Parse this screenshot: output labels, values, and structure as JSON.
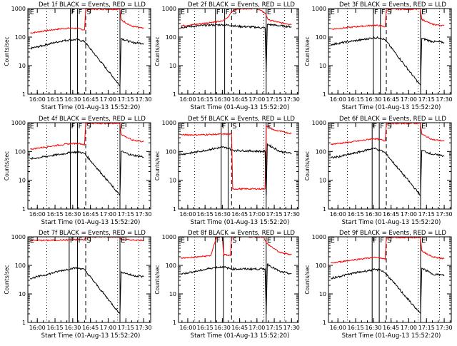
{
  "chart_data": {
    "type": "line",
    "layout": "3x3 grid of panels",
    "yscale": "log",
    "ylim": [
      1,
      1000
    ],
    "ytick_labels": [
      "1",
      "10",
      "100",
      "1000"
    ],
    "xtick_labels": [
      "16:00",
      "16:15",
      "16:30",
      "16:45",
      "17:00",
      "17:15",
      "17:30"
    ],
    "xlabel": "Start Time (01-Aug-13 15:52:20)",
    "ylabel": "Counts/sec",
    "colors": {
      "events": "#000000",
      "lld": "#ff0000"
    },
    "panels": [
      {
        "title": "Det 1f BLACK = Events, RED = LLD",
        "markers": {
          "Fsolid": [
            "16:28",
            "16:34"
          ],
          "Sdash": "16:41",
          "Esolid": "17:10",
          "dotted": [
            "16:08",
            "17:08",
            "17:26"
          ]
        },
        "letters": [
          "E",
          "F",
          "F",
          "S",
          "E"
        ],
        "events": [
          {
            "t": "15:54",
            "v": 40
          },
          {
            "t": "16:00",
            "v": 45
          },
          {
            "t": "16:08",
            "v": 55
          },
          {
            "t": "16:15",
            "v": 65
          },
          {
            "t": "16:22",
            "v": 75
          },
          {
            "t": "16:28",
            "v": 80
          },
          {
            "t": "16:34",
            "v": 82
          },
          {
            "t": "16:40",
            "v": 70
          },
          {
            "t": "17:10",
            "v": 2
          },
          {
            "t": "17:11",
            "v": 90
          },
          {
            "t": "17:20",
            "v": 65
          },
          {
            "t": "17:30",
            "v": 60
          }
        ],
        "lld": [
          {
            "t": "15:54",
            "v": 140
          },
          {
            "t": "16:00",
            "v": 150
          },
          {
            "t": "16:08",
            "v": 170
          },
          {
            "t": "16:15",
            "v": 185
          },
          {
            "t": "16:22",
            "v": 200
          },
          {
            "t": "16:28",
            "v": 205
          },
          {
            "t": "16:34",
            "v": 200
          },
          {
            "t": "16:40",
            "v": 180
          },
          {
            "t": "16:41",
            "v": 950
          },
          {
            "t": "17:10",
            "v": 950
          },
          {
            "t": "17:11",
            "v": 400
          },
          {
            "t": "17:20",
            "v": 240
          },
          {
            "t": "17:30",
            "v": 200
          }
        ]
      },
      {
        "title": "Det 2f BLACK = Events, RED = LLD",
        "markers": {
          "Fsolid": [
            "16:24",
            "16:32"
          ],
          "Sdash": "16:38",
          "Esolid": "17:08",
          "dotted": [
            "16:06",
            "17:06",
            "17:24"
          ]
        },
        "letters": [
          "E",
          "F",
          "F",
          "S",
          "E"
        ],
        "events": [
          {
            "t": "15:54",
            "v": 220
          },
          {
            "t": "16:00",
            "v": 230
          },
          {
            "t": "16:10",
            "v": 250
          },
          {
            "t": "16:20",
            "v": 265
          },
          {
            "t": "16:30",
            "v": 270
          },
          {
            "t": "16:38",
            "v": 260
          },
          {
            "t": "16:42",
            "v": 240
          },
          {
            "t": "17:00",
            "v": 220
          },
          {
            "t": "17:07",
            "v": 210
          },
          {
            "t": "17:08",
            "v": 6
          },
          {
            "t": "17:09",
            "v": 280
          },
          {
            "t": "17:20",
            "v": 250
          },
          {
            "t": "17:30",
            "v": 230
          }
        ],
        "lld": [
          {
            "t": "15:54",
            "v": 250
          },
          {
            "t": "16:00",
            "v": 260
          },
          {
            "t": "16:10",
            "v": 290
          },
          {
            "t": "16:20",
            "v": 330
          },
          {
            "t": "16:30",
            "v": 360
          },
          {
            "t": "16:35",
            "v": 500
          },
          {
            "t": "16:38",
            "v": 800
          },
          {
            "t": "16:45",
            "v": 1000
          },
          {
            "t": "17:00",
            "v": 1000
          },
          {
            "t": "17:07",
            "v": 700
          },
          {
            "t": "17:10",
            "v": 400
          },
          {
            "t": "17:20",
            "v": 320
          },
          {
            "t": "17:30",
            "v": 280
          }
        ]
      },
      {
        "title": "Det 3f BLACK = Events, RED = LLD",
        "markers": {
          "Fsolid": [
            "16:30",
            "16:36"
          ],
          "Sdash": "16:41",
          "Esolid": "17:10",
          "dotted": [
            "16:08",
            "17:08",
            "17:26"
          ]
        },
        "letters": [
          "E",
          "F",
          "F",
          "S",
          "E"
        ],
        "events": [
          {
            "t": "15:54",
            "v": 55
          },
          {
            "t": "16:00",
            "v": 60
          },
          {
            "t": "16:10",
            "v": 70
          },
          {
            "t": "16:20",
            "v": 80
          },
          {
            "t": "16:30",
            "v": 95
          },
          {
            "t": "16:36",
            "v": 95
          },
          {
            "t": "16:40",
            "v": 80
          },
          {
            "t": "17:10",
            "v": 2
          },
          {
            "t": "17:11",
            "v": 90
          },
          {
            "t": "17:20",
            "v": 70
          },
          {
            "t": "17:30",
            "v": 65
          }
        ],
        "lld": [
          {
            "t": "15:54",
            "v": 190
          },
          {
            "t": "16:00",
            "v": 200
          },
          {
            "t": "16:10",
            "v": 220
          },
          {
            "t": "16:20",
            "v": 240
          },
          {
            "t": "16:30",
            "v": 260
          },
          {
            "t": "16:36",
            "v": 250
          },
          {
            "t": "16:40",
            "v": 230
          },
          {
            "t": "16:41",
            "v": 950
          },
          {
            "t": "17:10",
            "v": 950
          },
          {
            "t": "17:11",
            "v": 420
          },
          {
            "t": "17:20",
            "v": 280
          },
          {
            "t": "17:30",
            "v": 250
          }
        ]
      },
      {
        "title": "Det 4f BLACK = Events, RED = LLD",
        "markers": {
          "Fsolid": [
            "16:28",
            "16:34"
          ],
          "Sdash": "16:41",
          "Esolid": "17:10",
          "dotted": [
            "16:08",
            "17:08",
            "17:26"
          ]
        },
        "letters": [
          "E",
          "F",
          "F",
          "S",
          "E"
        ],
        "events": [
          {
            "t": "15:54",
            "v": 55
          },
          {
            "t": "16:00",
            "v": 60
          },
          {
            "t": "16:10",
            "v": 70
          },
          {
            "t": "16:20",
            "v": 80
          },
          {
            "t": "16:30",
            "v": 95
          },
          {
            "t": "16:36",
            "v": 95
          },
          {
            "t": "16:40",
            "v": 85
          },
          {
            "t": "17:10",
            "v": 3
          },
          {
            "t": "17:11",
            "v": 100
          },
          {
            "t": "17:20",
            "v": 75
          },
          {
            "t": "17:30",
            "v": 65
          }
        ],
        "lld": [
          {
            "t": "15:54",
            "v": 120
          },
          {
            "t": "16:00",
            "v": 130
          },
          {
            "t": "16:10",
            "v": 150
          },
          {
            "t": "16:20",
            "v": 170
          },
          {
            "t": "16:30",
            "v": 190
          },
          {
            "t": "16:36",
            "v": 190
          },
          {
            "t": "16:40",
            "v": 170
          },
          {
            "t": "16:41",
            "v": 950
          },
          {
            "t": "17:10",
            "v": 950
          },
          {
            "t": "17:11",
            "v": 400
          },
          {
            "t": "17:20",
            "v": 250
          },
          {
            "t": "17:30",
            "v": 220
          }
        ]
      },
      {
        "title": "Det 5f BLACK = Events, RED = LLD",
        "markers": {
          "Fsolid": [
            "16:29",
            "16:35"
          ],
          "Sdash": "16:38",
          "Esolid": "17:08",
          "dotted": [
            "16:06",
            "17:06",
            "17:24"
          ]
        },
        "letters": [
          "E",
          "F",
          "S",
          "E"
        ],
        "events": [
          {
            "t": "15:54",
            "v": 80
          },
          {
            "t": "16:00",
            "v": 85
          },
          {
            "t": "16:10",
            "v": 100
          },
          {
            "t": "16:20",
            "v": 120
          },
          {
            "t": "16:30",
            "v": 140
          },
          {
            "t": "16:36",
            "v": 130
          },
          {
            "t": "16:38",
            "v": 110
          },
          {
            "t": "17:07",
            "v": 100
          },
          {
            "t": "17:08",
            "v": 3
          },
          {
            "t": "17:09",
            "v": 180
          },
          {
            "t": "17:20",
            "v": 100
          },
          {
            "t": "17:30",
            "v": 85
          }
        ],
        "lld": [
          {
            "t": "15:54",
            "v": 380
          },
          {
            "t": "16:10",
            "v": 380
          },
          {
            "t": "16:20",
            "v": 390
          },
          {
            "t": "16:30",
            "v": 400
          },
          {
            "t": "16:38",
            "v": 400
          },
          {
            "t": "16:39",
            "v": 5
          },
          {
            "t": "17:07",
            "v": 5
          },
          {
            "t": "17:08",
            "v": 800
          },
          {
            "t": "17:15",
            "v": 550
          },
          {
            "t": "17:30",
            "v": 420
          }
        ]
      },
      {
        "title": "Det 6f BLACK = Events, RED = LLD",
        "markers": {
          "Fsolid": [
            "16:29",
            "16:35"
          ],
          "Sdash": "16:41",
          "Esolid": "17:10",
          "dotted": [
            "16:08",
            "17:08",
            "17:26"
          ]
        },
        "letters": [
          "E",
          "F",
          "F",
          "S",
          "E"
        ],
        "events": [
          {
            "t": "15:54",
            "v": 60
          },
          {
            "t": "16:00",
            "v": 65
          },
          {
            "t": "16:10",
            "v": 80
          },
          {
            "t": "16:20",
            "v": 100
          },
          {
            "t": "16:30",
            "v": 130
          },
          {
            "t": "16:36",
            "v": 110
          },
          {
            "t": "16:40",
            "v": 90
          },
          {
            "t": "17:10",
            "v": 3
          },
          {
            "t": "17:11",
            "v": 110
          },
          {
            "t": "17:20",
            "v": 80
          },
          {
            "t": "17:30",
            "v": 70
          }
        ],
        "lld": [
          {
            "t": "15:54",
            "v": 180
          },
          {
            "t": "16:00",
            "v": 190
          },
          {
            "t": "16:10",
            "v": 210
          },
          {
            "t": "16:20",
            "v": 240
          },
          {
            "t": "16:30",
            "v": 280
          },
          {
            "t": "16:36",
            "v": 260
          },
          {
            "t": "16:40",
            "v": 230
          },
          {
            "t": "16:41",
            "v": 950
          },
          {
            "t": "17:10",
            "v": 950
          },
          {
            "t": "17:11",
            "v": 400
          },
          {
            "t": "17:20",
            "v": 260
          },
          {
            "t": "17:30",
            "v": 230
          }
        ]
      },
      {
        "title": "Det 7f BLACK = Events, RED = LLD",
        "markers": {
          "Fsolid": [
            "16:27",
            "16:34"
          ],
          "Sdash": "16:41",
          "Esolid": "17:10",
          "dotted": [
            "16:08",
            "17:08",
            "17:26"
          ]
        },
        "letters": [
          "E",
          "F",
          "F",
          "S",
          "E"
        ],
        "events": [
          {
            "t": "15:54",
            "v": 35
          },
          {
            "t": "16:00",
            "v": 40
          },
          {
            "t": "16:10",
            "v": 50
          },
          {
            "t": "16:20",
            "v": 65
          },
          {
            "t": "16:30",
            "v": 80
          },
          {
            "t": "16:36",
            "v": 80
          },
          {
            "t": "16:40",
            "v": 70
          },
          {
            "t": "17:10",
            "v": 2
          },
          {
            "t": "17:11",
            "v": 60
          },
          {
            "t": "17:20",
            "v": 45
          },
          {
            "t": "17:30",
            "v": 40
          }
        ],
        "lld": [
          {
            "t": "15:54",
            "v": 750
          },
          {
            "t": "16:10",
            "v": 760
          },
          {
            "t": "16:20",
            "v": 770
          },
          {
            "t": "16:30",
            "v": 790
          },
          {
            "t": "16:40",
            "v": 790
          },
          {
            "t": "16:41",
            "v": 1000
          },
          {
            "t": "17:10",
            "v": 1000
          },
          {
            "t": "17:11",
            "v": 800
          },
          {
            "t": "17:20",
            "v": 780
          },
          {
            "t": "17:30",
            "v": 760
          }
        ]
      },
      {
        "title": "Det 8f BLACK = Events, RED = LLD",
        "markers": {
          "Fsolid": [
            "16:24",
            "16:31"
          ],
          "Sdash": "16:38",
          "Esolid": "17:08",
          "dotted": [
            "16:06",
            "17:06",
            "17:24"
          ]
        },
        "letters": [
          "E",
          "F",
          "S",
          "E"
        ],
        "events": [
          {
            "t": "15:54",
            "v": 50
          },
          {
            "t": "16:00",
            "v": 55
          },
          {
            "t": "16:10",
            "v": 65
          },
          {
            "t": "16:20",
            "v": 80
          },
          {
            "t": "16:30",
            "v": 90
          },
          {
            "t": "16:38",
            "v": 75
          },
          {
            "t": "17:07",
            "v": 75
          },
          {
            "t": "17:08",
            "v": 2
          },
          {
            "t": "17:09",
            "v": 110
          },
          {
            "t": "17:20",
            "v": 60
          },
          {
            "t": "17:30",
            "v": 50
          }
        ],
        "lld": [
          {
            "t": "15:54",
            "v": 180
          },
          {
            "t": "16:10",
            "v": 200
          },
          {
            "t": "16:20",
            "v": 220
          },
          {
            "t": "16:25",
            "v": 1000
          },
          {
            "t": "16:30",
            "v": 1000
          },
          {
            "t": "16:31",
            "v": 240
          },
          {
            "t": "16:37",
            "v": 220
          },
          {
            "t": "16:38",
            "v": 1000
          },
          {
            "t": "17:06",
            "v": 1000
          },
          {
            "t": "17:08",
            "v": 600
          },
          {
            "t": "17:20",
            "v": 280
          },
          {
            "t": "17:30",
            "v": 240
          }
        ]
      },
      {
        "title": "Det 9f BLACK = Events, RED = LLD",
        "markers": {
          "Fsolid": [
            "16:29",
            "16:35"
          ],
          "Sdash": "16:41",
          "Esolid": "17:10",
          "dotted": [
            "16:08",
            "17:08",
            "17:26"
          ]
        },
        "letters": [
          "E",
          "F",
          "F",
          "S",
          "E"
        ],
        "events": [
          {
            "t": "15:54",
            "v": 35
          },
          {
            "t": "16:00",
            "v": 40
          },
          {
            "t": "16:10",
            "v": 50
          },
          {
            "t": "16:20",
            "v": 60
          },
          {
            "t": "16:30",
            "v": 70
          },
          {
            "t": "16:36",
            "v": 70
          },
          {
            "t": "16:40",
            "v": 55
          },
          {
            "t": "17:10",
            "v": 2
          },
          {
            "t": "17:11",
            "v": 80
          },
          {
            "t": "17:20",
            "v": 50
          },
          {
            "t": "17:30",
            "v": 45
          }
        ],
        "lld": [
          {
            "t": "15:54",
            "v": 120
          },
          {
            "t": "16:00",
            "v": 130
          },
          {
            "t": "16:10",
            "v": 150
          },
          {
            "t": "16:20",
            "v": 170
          },
          {
            "t": "16:30",
            "v": 190
          },
          {
            "t": "16:36",
            "v": 185
          },
          {
            "t": "16:40",
            "v": 160
          },
          {
            "t": "16:41",
            "v": 950
          },
          {
            "t": "17:10",
            "v": 950
          },
          {
            "t": "17:11",
            "v": 320
          },
          {
            "t": "17:20",
            "v": 200
          },
          {
            "t": "17:30",
            "v": 170
          }
        ]
      }
    ]
  }
}
